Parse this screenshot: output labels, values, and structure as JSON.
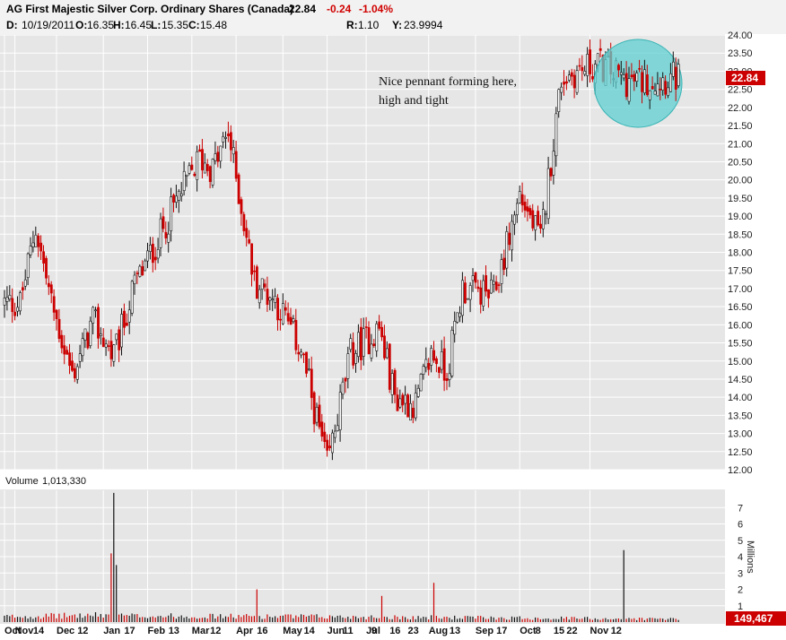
{
  "header": {
    "title": "AG First Majestic Silver Corp. Ordinary Shares (Canada)",
    "last": "22.84",
    "change": "-0.24",
    "change_pct": "-1.04%",
    "date_label": "D:",
    "date": "10/19/2011",
    "open_label": "O:",
    "open": "16.35",
    "high_label": "H:",
    "high": "16.45",
    "low_label": "L:",
    "low": "15.35",
    "close_label": "C:",
    "close": "15.48",
    "r_label": "R:",
    "r": "1.10",
    "y_label": "Y:",
    "y": "23.9994"
  },
  "volume_panel": {
    "title": "Volume",
    "total": "1,013,330",
    "unit_label": "Millions",
    "last_badge": "149,467"
  },
  "price_badge": "22.84",
  "annotation": [
    "Nice pennant forming here,",
    "high and tight"
  ],
  "colors": {
    "up": "#111111",
    "down": "#cc0000",
    "circle": "#5fcfd0",
    "badge": "#cc0000",
    "grid": "#ffffff",
    "panel_bg": "#e6e6e6"
  },
  "chart_data": {
    "type": "candlestick",
    "price_axis": {
      "ylim": [
        12.0,
        24.0
      ],
      "ticks": [
        "24.00",
        "23.50",
        "23.00",
        "22.50",
        "22.00",
        "21.50",
        "21.00",
        "20.50",
        "20.00",
        "19.50",
        "19.00",
        "18.50",
        "18.00",
        "17.50",
        "17.00",
        "16.50",
        "16.00",
        "15.50",
        "15.00",
        "14.50",
        "14.00",
        "13.50",
        "13.00",
        "12.50",
        "12.00"
      ]
    },
    "volume_axis": {
      "ylim": [
        0,
        8
      ],
      "ticks": [
        "7",
        "6",
        "5",
        "4",
        "3",
        "2",
        "1"
      ],
      "unit": "Millions"
    },
    "x_labels": [
      "Oct",
      "Nov",
      "14",
      "Dec",
      "12",
      "Jan",
      "17",
      "Feb",
      "13",
      "Mar",
      "12",
      "Apr",
      "16",
      "May",
      "14",
      "Jun",
      "11",
      "Jul",
      "9",
      "16",
      "23",
      "Aug",
      "13",
      "Sep",
      "17",
      "Oct",
      "8",
      "15",
      "22",
      "Nov",
      "12"
    ],
    "x_label_positions": [
      0,
      4,
      11,
      20,
      28,
      38,
      46,
      55,
      63,
      72,
      79,
      89,
      97,
      107,
      115,
      124,
      130,
      139,
      141,
      148,
      155,
      163,
      171,
      181,
      189,
      198,
      204,
      211,
      216,
      225,
      233
    ],
    "price_path": [
      [
        0,
        16.6
      ],
      [
        6,
        16.6
      ],
      [
        12,
        18.7
      ],
      [
        18,
        16.6
      ],
      [
        26,
        14.6
      ],
      [
        34,
        16.1
      ],
      [
        42,
        15.1
      ],
      [
        50,
        17.1
      ],
      [
        58,
        18.2
      ],
      [
        66,
        19.4
      ],
      [
        75,
        20.6
      ],
      [
        80,
        20.3
      ],
      [
        86,
        21.3
      ],
      [
        96,
        17.2
      ],
      [
        104,
        16.7
      ],
      [
        114,
        15.3
      ],
      [
        124,
        12.1
      ],
      [
        133,
        15.2
      ],
      [
        144,
        15.9
      ],
      [
        150,
        14.0
      ],
      [
        158,
        13.8
      ],
      [
        164,
        15.2
      ],
      [
        170,
        14.7
      ],
      [
        176,
        17.0
      ],
      [
        188,
        16.8
      ],
      [
        198,
        19.6
      ],
      [
        206,
        18.3
      ],
      [
        214,
        22.8
      ],
      [
        228,
        23.2
      ],
      [
        240,
        22.7
      ],
      [
        260,
        22.84
      ]
    ],
    "volume_path": [
      [
        0,
        0.35
      ],
      [
        40,
        0.45
      ],
      [
        42,
        7.9
      ],
      [
        44,
        0.4
      ],
      [
        120,
        0.35
      ],
      [
        260,
        0.2
      ]
    ],
    "volume_spikes": {
      "42": 7.9,
      "41": 4.2,
      "238": 4.4,
      "165": 2.4,
      "97": 2.0,
      "145": 1.6
    },
    "highlight_circle": {
      "center_index": 253,
      "center_price": 22.7
    }
  }
}
